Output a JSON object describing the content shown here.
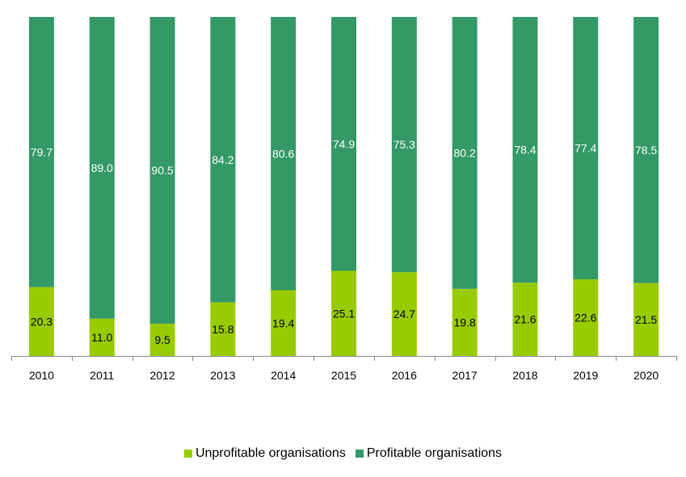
{
  "chart_data": {
    "type": "bar",
    "stacked": true,
    "percent": true,
    "categories": [
      "2010",
      "2011",
      "2012",
      "2013",
      "2014",
      "2015",
      "2016",
      "2017",
      "2018",
      "2019",
      "2020"
    ],
    "series": [
      {
        "name": "Unprofitable organisations",
        "color": "#99cc00",
        "values": [
          20.3,
          11.0,
          9.5,
          15.8,
          19.4,
          25.1,
          24.7,
          19.8,
          21.6,
          22.6,
          21.5
        ],
        "labels": [
          "20.3",
          "11.0",
          "9.5",
          "15.8",
          "19.4",
          "25.1",
          "24.7",
          "19.8",
          "21.6",
          "22.6",
          "21.5"
        ],
        "label_color": "#000000"
      },
      {
        "name": "Profitable organisations",
        "color": "#339966",
        "values": [
          79.7,
          89.0,
          90.5,
          84.2,
          80.6,
          74.9,
          75.3,
          80.2,
          78.4,
          77.4,
          78.5
        ],
        "labels": [
          "79.7",
          "89.0",
          "90.5",
          "84.2",
          "80.6",
          "74.9",
          "75.3",
          "80.2",
          "78.4",
          "77.4",
          "78.5"
        ],
        "label_color": "#ffffff"
      }
    ],
    "ylim": [
      0,
      100
    ],
    "grid": false,
    "legend_position": "bottom"
  }
}
